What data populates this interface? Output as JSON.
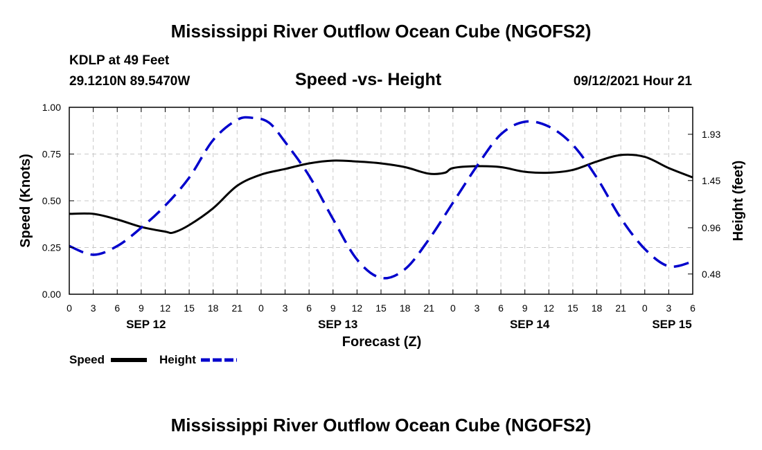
{
  "header": {
    "title_top": "Mississippi River Outflow Ocean Cube (NGOFS2)",
    "station": "KDLP at 49 Feet",
    "coords": "29.1210N  89.5470W",
    "subtitle": "Speed -vs- Height",
    "datetime": "09/12/2021 Hour 21",
    "title_bottom": "Mississippi River Outflow Ocean Cube (NGOFS2)"
  },
  "colors": {
    "speed": "#000000",
    "height": "#0000cc",
    "grid": "#c8c8c8"
  },
  "chart_data": {
    "type": "line",
    "title": "Speed -vs- Height",
    "xlabel": "Forecast (Z)",
    "ylabel": "Speed (Knots)",
    "y2label": "Height (feet)",
    "xlim": [
      0,
      78
    ],
    "ylim": [
      0,
      1.0
    ],
    "y2lim": [
      0.27,
      2.21
    ],
    "x_ticks": [
      0,
      3,
      6,
      9,
      12,
      15,
      18,
      21,
      24,
      27,
      30,
      33,
      36,
      39,
      42,
      45,
      48,
      51,
      54,
      57,
      60,
      63,
      66,
      69,
      72,
      75,
      78
    ],
    "x_tick_labels": [
      "0",
      "3",
      "6",
      "9",
      "12",
      "15",
      "18",
      "21",
      "0",
      "3",
      "6",
      "9",
      "12",
      "15",
      "18",
      "21",
      "0",
      "3",
      "6",
      "9",
      "12",
      "15",
      "18",
      "21",
      "0",
      "3",
      "6"
    ],
    "day_labels": [
      {
        "x": 9.6,
        "label": "SEP 12"
      },
      {
        "x": 33.6,
        "label": "SEP 13"
      },
      {
        "x": 57.6,
        "label": "SEP 14"
      },
      {
        "x": 75.4,
        "label": "SEP 15"
      }
    ],
    "y_ticks": [
      0,
      0.25,
      0.5,
      0.75,
      1.0
    ],
    "y_tick_labels": [
      "0.00",
      "0.25",
      "0.50",
      "0.75",
      "1.00"
    ],
    "y2_ticks": [
      0.48,
      0.96,
      1.45,
      1.93
    ],
    "y2_tick_labels": [
      "0.48",
      "0.96",
      "1.45",
      "1.93"
    ],
    "series": [
      {
        "name": "Speed",
        "axis": "left",
        "style": "solid",
        "x": [
          0,
          3,
          6,
          9,
          12,
          13,
          15,
          18,
          21,
          24,
          27,
          30,
          33,
          36,
          39,
          42,
          45,
          47,
          48,
          51,
          54,
          57,
          60,
          63,
          66,
          69,
          72,
          75,
          78
        ],
        "values": [
          0.43,
          0.43,
          0.4,
          0.36,
          0.335,
          0.33,
          0.37,
          0.46,
          0.58,
          0.64,
          0.67,
          0.7,
          0.715,
          0.71,
          0.7,
          0.68,
          0.645,
          0.65,
          0.675,
          0.685,
          0.68,
          0.655,
          0.65,
          0.665,
          0.71,
          0.745,
          0.735,
          0.675,
          0.625
        ]
      },
      {
        "name": "Height",
        "axis": "right",
        "style": "dashed",
        "x": [
          0,
          3,
          6,
          9,
          12,
          15,
          18,
          21,
          23,
          25,
          27,
          30,
          33,
          36,
          39,
          42,
          45,
          48,
          51,
          54,
          57,
          60,
          63,
          66,
          69,
          72,
          75,
          78
        ],
        "values": [
          0.77,
          0.68,
          0.77,
          0.96,
          1.19,
          1.48,
          1.87,
          2.08,
          2.1,
          2.05,
          1.85,
          1.5,
          1.05,
          0.63,
          0.44,
          0.53,
          0.84,
          1.22,
          1.6,
          1.93,
          2.06,
          2.01,
          1.82,
          1.48,
          1.06,
          0.74,
          0.56,
          0.61
        ]
      }
    ],
    "legend": [
      {
        "label": "Speed",
        "style": "solid"
      },
      {
        "label": "Height",
        "style": "dashed"
      }
    ]
  }
}
